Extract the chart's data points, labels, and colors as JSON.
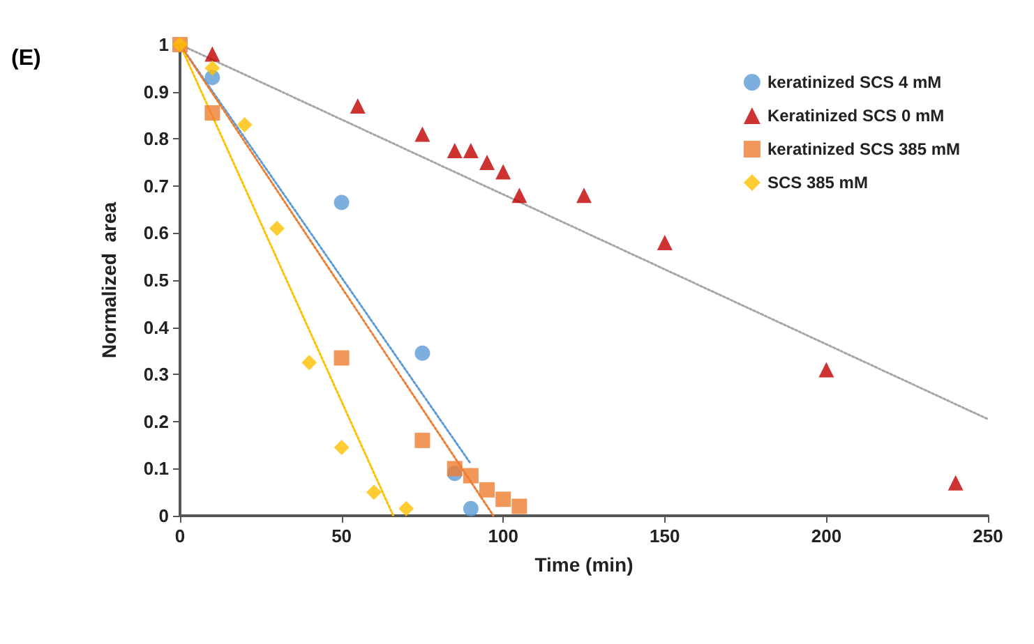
{
  "chart_data": {
    "type": "scatter",
    "xlabel": "Time (min)",
    "ylabel": "Normalized  area",
    "annotations": [
      "(E)"
    ],
    "xlim": [
      0,
      250
    ],
    "xticks": [
      0,
      50,
      100,
      150,
      200,
      250
    ],
    "ylim": [
      0,
      1
    ],
    "yticks": [
      0,
      0.1,
      0.2,
      0.3,
      0.4,
      0.5,
      0.6,
      0.7,
      0.8,
      0.9,
      1
    ],
    "grid": false,
    "legend": "top right",
    "series": [
      {
        "name": "keratinized SCS 4 mM",
        "color": "#5b9bd5",
        "marker": "circle",
        "x": [
          10,
          50,
          75,
          85,
          90
        ],
        "values": [
          0.93,
          0.665,
          0.345,
          0.09,
          0.015
        ]
      },
      {
        "name": "Keratinized SCS 0 mM",
        "color": "#c00000",
        "marker": "triangle",
        "x": [
          10,
          55,
          75,
          85,
          90,
          95,
          100,
          105,
          125,
          150,
          200,
          240
        ],
        "values": [
          0.98,
          0.87,
          0.81,
          0.775,
          0.775,
          0.75,
          0.73,
          0.68,
          0.68,
          0.58,
          0.31,
          0.07
        ]
      },
      {
        "name": "keratinized SCS 385 mM",
        "color": "#ed7d31",
        "marker": "square",
        "x": [
          0,
          10,
          50,
          75,
          85,
          90,
          95,
          100,
          105
        ],
        "values": [
          1,
          0.855,
          0.335,
          0.16,
          0.1,
          0.085,
          0.055,
          0.035,
          0.02
        ]
      },
      {
        "name": "SCS 385 mM",
        "color": "#ffc000",
        "marker": "diamond",
        "x": [
          0,
          10,
          20,
          30,
          40,
          50,
          60,
          70
        ],
        "values": [
          1,
          0.95,
          0.83,
          0.61,
          0.325,
          0.145,
          0.05,
          0.015
        ]
      },
      {
        "type": "line",
        "color": "#5b9bd5",
        "line_style": "dotted",
        "marker": "none",
        "x": [
          0,
          90
        ],
        "values": [
          1,
          0.11
        ]
      },
      {
        "type": "line",
        "color": "#a6a6a6",
        "line_style": "dotted",
        "marker": "none",
        "x": [
          0,
          250
        ],
        "values": [
          1,
          0.205
        ]
      },
      {
        "type": "line",
        "color": "#ed7d31",
        "line_style": "dotted",
        "marker": "none",
        "x": [
          0,
          97
        ],
        "values": [
          1,
          0
        ]
      },
      {
        "type": "line",
        "color": "#ffc000",
        "line_style": "dotted",
        "marker": "none",
        "x": [
          0,
          66
        ],
        "values": [
          1,
          0
        ]
      }
    ]
  }
}
